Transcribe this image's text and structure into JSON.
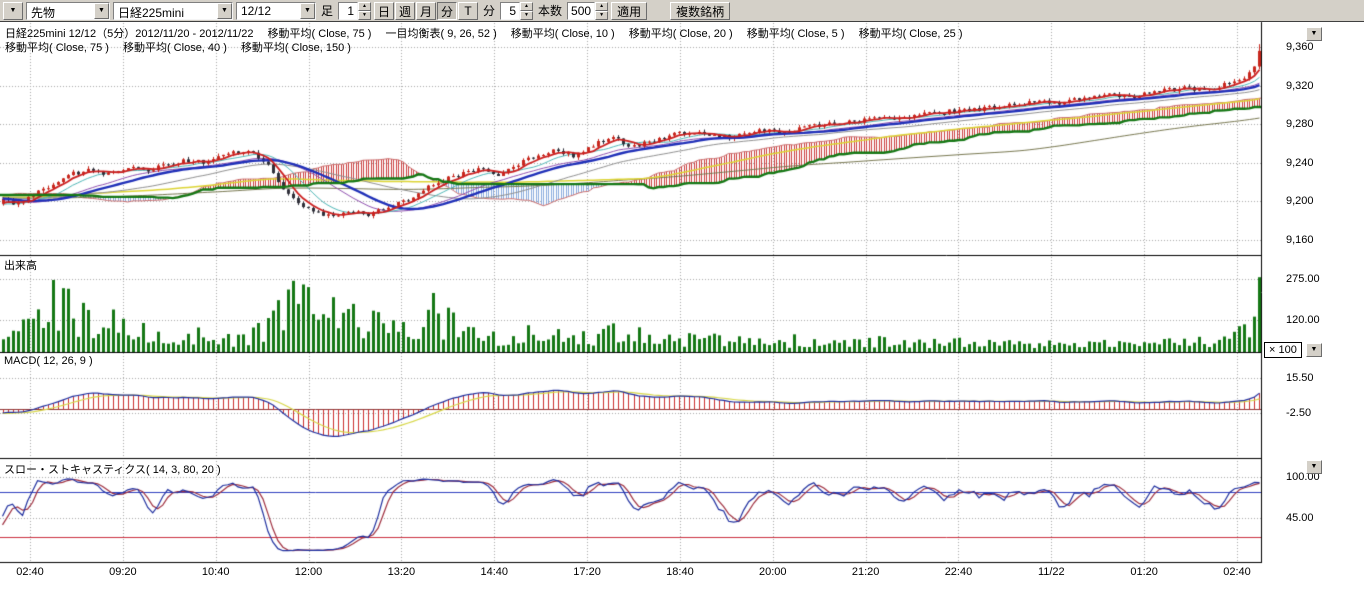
{
  "icons": {
    "chevron_down": "▼",
    "spin_up": "▲",
    "spin_down": "▼"
  },
  "toolbar": {
    "category_value": "先物",
    "symbol_value": "日経225mini",
    "contract_value": "12/12",
    "bar_type_label": "足",
    "interval_value": "1",
    "period_buttons": [
      {
        "label": "日",
        "active": false
      },
      {
        "label": "週",
        "active": false
      },
      {
        "label": "月",
        "active": false
      },
      {
        "label": "分",
        "active": true
      },
      {
        "label": "T",
        "active": false
      }
    ],
    "minute_label": "分",
    "minute_value": "5",
    "count_label": "本数",
    "count_value": "500",
    "apply_label": "適用",
    "multi_symbol_label": "複数銘柄"
  },
  "legend": {
    "line1": "日経225mini 12/12（5分）2012/11/20 - 2012/11/22　 移動平均( Close, 75 )　 一目均衡表( 9, 26, 52 )　 移動平均( Close, 10 )　 移動平均( Close, 20 )　 移動平均( Close, 5 )　 移動平均( Close, 25 )",
    "line2": "移動平均( Close, 75 )　 移動平均( Close, 40 )　 移動平均( Close, 150 )"
  },
  "panel_titles": {
    "volume": "出来高",
    "macd": "MACD( 12, 26, 9 )",
    "stoch": "スロー・ストキャスティクス( 14, 3, 80, 20 )"
  },
  "chart_data": {
    "type": "candlestick",
    "symbol": "日経225mini",
    "contract": "12/12",
    "interval": "5分",
    "session": "2012/11/20 - 2012/11/22",
    "bars_visible": 252,
    "warmup_bars": 170,
    "seed": 11,
    "time_labels": [
      "02:40",
      "09:20",
      "10:40",
      "12:00",
      "13:20",
      "14:40",
      "17:20",
      "18:40",
      "20:00",
      "21:20",
      "22:40",
      "11/22",
      "01:20",
      "02:40"
    ],
    "panels": {
      "main": {
        "range": [
          9144,
          9386
        ],
        "ticks": [
          {
            "v": 9360,
            "label": "9,360"
          },
          {
            "v": 9320,
            "label": "9,320"
          },
          {
            "v": 9280,
            "label": "9,280"
          },
          {
            "v": 9240,
            "label": "9,240"
          },
          {
            "v": 9200,
            "label": "9,200"
          },
          {
            "v": 9160,
            "label": "9,160"
          }
        ]
      },
      "volume": {
        "range": [
          0,
          367
        ],
        "ticks": [
          {
            "v": 275,
            "label": "275.00"
          },
          {
            "v": 120,
            "label": "120.00"
          }
        ],
        "multiplier_label": "× 100"
      },
      "macd": {
        "range": [
          -25.4,
          29.1
        ],
        "params": [
          12,
          26,
          9
        ],
        "ticks": [
          {
            "v": 15.5,
            "label": "15.50"
          },
          {
            "v": -2.5,
            "label": "-2.50"
          }
        ]
      },
      "stoch": {
        "range": [
          -13,
          125
        ],
        "params": [
          14,
          3,
          80,
          20
        ],
        "overbought": 80,
        "oversold": 20,
        "ticks": [
          {
            "v": 100,
            "label": "100.00"
          },
          {
            "v": 45,
            "label": "45.00"
          }
        ]
      }
    },
    "indicators": {
      "moving_averages": [
        5,
        10,
        20,
        25,
        40,
        75,
        150
      ],
      "ichimoku": [
        9,
        26,
        52
      ]
    },
    "price_anchors": [
      [
        0.0,
        9203
      ],
      [
        0.012,
        9196
      ],
      [
        0.025,
        9207
      ],
      [
        0.04,
        9218
      ],
      [
        0.055,
        9228
      ],
      [
        0.07,
        9232
      ],
      [
        0.085,
        9227
      ],
      [
        0.1,
        9236
      ],
      [
        0.115,
        9232
      ],
      [
        0.13,
        9238
      ],
      [
        0.145,
        9242
      ],
      [
        0.16,
        9240
      ],
      [
        0.175,
        9247
      ],
      [
        0.19,
        9252
      ],
      [
        0.2,
        9248
      ],
      [
        0.21,
        9238
      ],
      [
        0.222,
        9215
      ],
      [
        0.235,
        9196
      ],
      [
        0.25,
        9188
      ],
      [
        0.262,
        9184
      ],
      [
        0.275,
        9190
      ],
      [
        0.29,
        9186
      ],
      [
        0.305,
        9192
      ],
      [
        0.32,
        9200
      ],
      [
        0.335,
        9212
      ],
      [
        0.35,
        9222
      ],
      [
        0.365,
        9228
      ],
      [
        0.38,
        9233
      ],
      [
        0.395,
        9228
      ],
      [
        0.41,
        9238
      ],
      [
        0.425,
        9247
      ],
      [
        0.44,
        9252
      ],
      [
        0.455,
        9247
      ],
      [
        0.47,
        9258
      ],
      [
        0.485,
        9266
      ],
      [
        0.5,
        9257
      ],
      [
        0.515,
        9262
      ],
      [
        0.53,
        9268
      ],
      [
        0.545,
        9272
      ],
      [
        0.56,
        9269
      ],
      [
        0.58,
        9266
      ],
      [
        0.6,
        9274
      ],
      [
        0.62,
        9271
      ],
      [
        0.64,
        9277
      ],
      [
        0.66,
        9280
      ],
      [
        0.68,
        9283
      ],
      [
        0.7,
        9286
      ],
      [
        0.72,
        9288
      ],
      [
        0.74,
        9291
      ],
      [
        0.76,
        9294
      ],
      [
        0.78,
        9296
      ],
      [
        0.8,
        9300
      ],
      [
        0.82,
        9303
      ],
      [
        0.84,
        9301
      ],
      [
        0.86,
        9307
      ],
      [
        0.88,
        9311
      ],
      [
        0.9,
        9309
      ],
      [
        0.92,
        9314
      ],
      [
        0.94,
        9317
      ],
      [
        0.955,
        9315
      ],
      [
        0.97,
        9320
      ],
      [
        0.985,
        9326
      ],
      [
        0.995,
        9334
      ],
      [
        1.0,
        9356
      ]
    ],
    "volume_anchors": [
      [
        0.0,
        70
      ],
      [
        0.02,
        130
      ],
      [
        0.035,
        200
      ],
      [
        0.05,
        255
      ],
      [
        0.065,
        150
      ],
      [
        0.08,
        100
      ],
      [
        0.095,
        170
      ],
      [
        0.11,
        90
      ],
      [
        0.13,
        60
      ],
      [
        0.15,
        80
      ],
      [
        0.17,
        55
      ],
      [
        0.19,
        65
      ],
      [
        0.21,
        120
      ],
      [
        0.225,
        210
      ],
      [
        0.24,
        265
      ],
      [
        0.255,
        235
      ],
      [
        0.27,
        180
      ],
      [
        0.285,
        140
      ],
      [
        0.3,
        120
      ],
      [
        0.32,
        100
      ],
      [
        0.34,
        195
      ],
      [
        0.36,
        110
      ],
      [
        0.38,
        80
      ],
      [
        0.4,
        70
      ],
      [
        0.43,
        85
      ],
      [
        0.46,
        75
      ],
      [
        0.49,
        90
      ],
      [
        0.52,
        65
      ],
      [
        0.55,
        55
      ],
      [
        0.58,
        60
      ],
      [
        0.61,
        45
      ],
      [
        0.64,
        55
      ],
      [
        0.67,
        40
      ],
      [
        0.7,
        50
      ],
      [
        0.73,
        38
      ],
      [
        0.76,
        45
      ],
      [
        0.79,
        35
      ],
      [
        0.82,
        40
      ],
      [
        0.85,
        32
      ],
      [
        0.88,
        45
      ],
      [
        0.91,
        38
      ],
      [
        0.94,
        42
      ],
      [
        0.965,
        50
      ],
      [
        0.985,
        90
      ],
      [
        1.0,
        280
      ]
    ]
  },
  "colors": {
    "up_candle": "#c8281e",
    "down_candle": "#30303a",
    "volume_bar": "#157815",
    "ma5": "#cc2020",
    "ma10": "#50b8b8",
    "ma20": "#9050b0",
    "ma25": "#2030b8",
    "ma40": "#909090",
    "ma75": "#ddd535",
    "ma150": "#787850",
    "ichimoku_cloud": "#cc4040",
    "ichimoku_cloud_bear": "#88aadd",
    "ichimoku_senkou_a": "#cc7070",
    "ichimoku_senkou_b": "#157815",
    "macd_line": "#2030a0",
    "macd_signal": "#d8d84a",
    "macd_hist": "#cc3030",
    "macd_zero": "#8b3636",
    "stoch_k": "#2030a0",
    "stoch_d": "#a03040",
    "stoch_high_line": "#3040c0",
    "stoch_low_line": "#cc3040",
    "grid": "#a8a8a8",
    "frame": "#000000"
  }
}
